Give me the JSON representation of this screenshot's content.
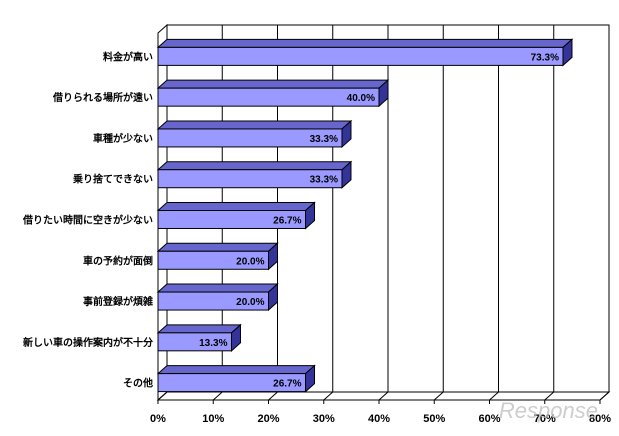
{
  "chart_data": {
    "type": "bar",
    "orientation": "horizontal",
    "categories": [
      "料金が高い",
      "借りられる場所が遠い",
      "車種が少ない",
      "乗り捨てできない",
      "借りたい時間に空きが少ない",
      "車の予約が面倒",
      "事前登録が煩雑",
      "新しい車の操作案内が不十分",
      "その他"
    ],
    "values": [
      73.3,
      40.0,
      33.3,
      33.3,
      26.7,
      20.0,
      20.0,
      13.3,
      26.7
    ],
    "value_labels": [
      "73.3%",
      "40.0%",
      "33.3%",
      "33.3%",
      "26.7%",
      "20.0%",
      "20.0%",
      "13.3%",
      "26.7%"
    ],
    "xlim": [
      0,
      80
    ],
    "x_ticks": [
      0,
      10,
      20,
      30,
      40,
      50,
      60,
      70,
      80
    ],
    "x_tick_labels": [
      "0%",
      "10%",
      "20%",
      "30%",
      "40%",
      "50%",
      "60%",
      "70%",
      "80%"
    ],
    "grid": true,
    "bar_color": "#9999ff",
    "bar_top_color": "#6666cc",
    "bar_side_color": "#33339a",
    "title": "",
    "xlabel": "",
    "ylabel": ""
  },
  "watermark_text": "Response"
}
